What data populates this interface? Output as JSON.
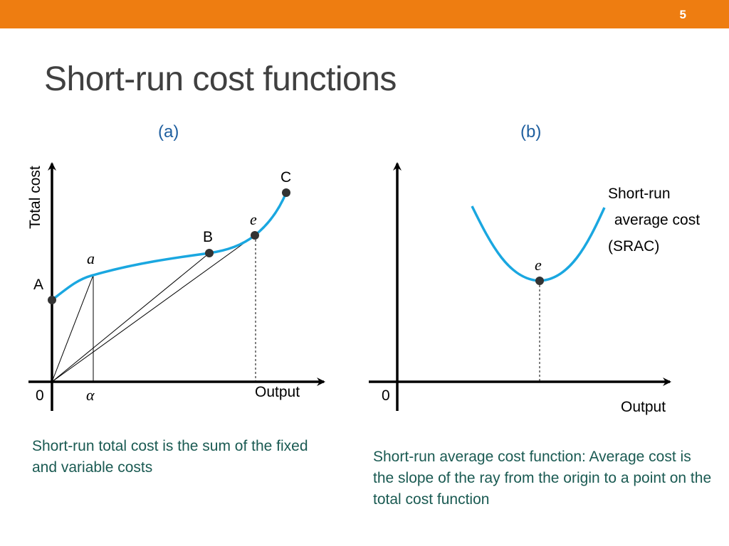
{
  "slide": {
    "page_number": "5",
    "title": "Short-run cost functions",
    "accent_color": "#ee7d11",
    "curve_color": "#1aa7e0"
  },
  "panel_a": {
    "label": "(a)",
    "y_axis_label": "Total cost",
    "x_axis_label": "Output",
    "origin_label": "0",
    "alpha_label": "α",
    "point_A": "A",
    "point_a": "a",
    "point_B": "B",
    "point_e": "e",
    "point_C": "C",
    "caption": "Short-run total cost is the sum of the fixed and variable costs"
  },
  "panel_b": {
    "label": "(b)",
    "x_axis_label": "Output",
    "origin_label": "0",
    "point_e": "e",
    "curve_label_line1": "Short-run",
    "curve_label_line2": " average cost",
    "curve_label_line3": "(SRAC)",
    "caption": "Short-run average cost function: Average cost is the slope of the ray from the origin to a point on the total cost function"
  }
}
